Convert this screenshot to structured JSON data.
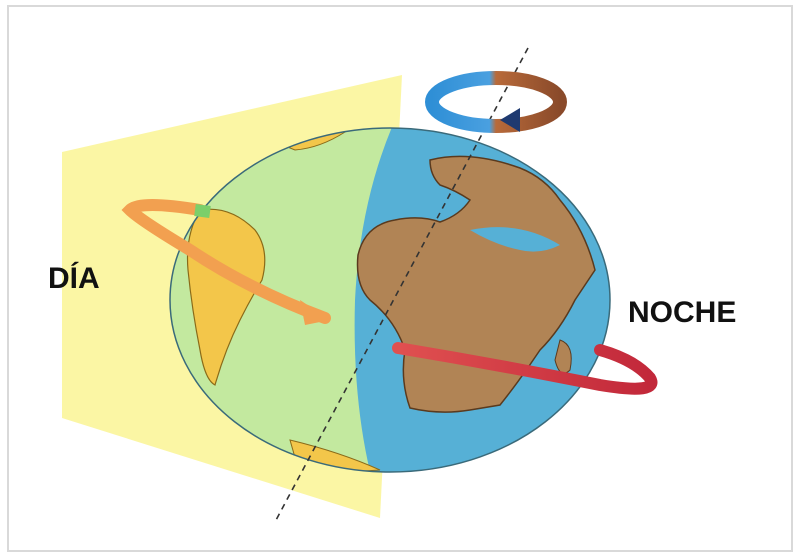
{
  "labels": {
    "day": "DÍA",
    "night": "NOCHE"
  }
}
